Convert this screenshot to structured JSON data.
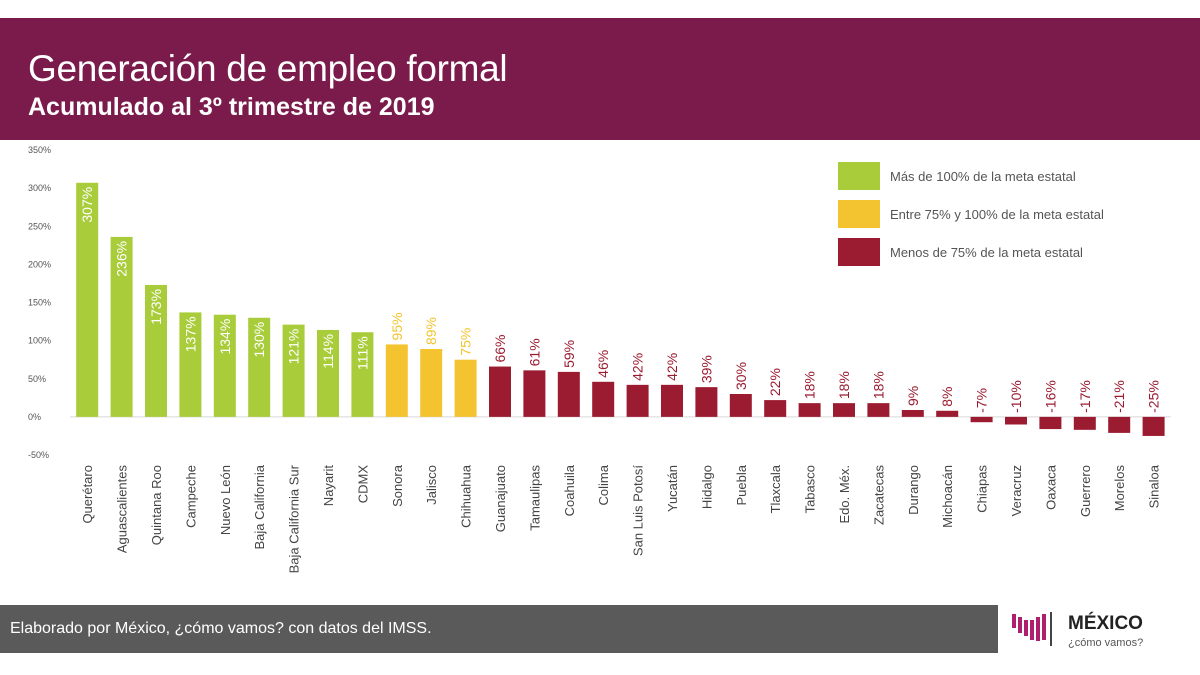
{
  "header": {
    "title": "Generación de empleo formal",
    "subtitle": "Acumulado al 3º trimestre de 2019"
  },
  "footer": {
    "source": "Elaborado por México, ¿cómo vamos? con datos del IMSS."
  },
  "logo": {
    "title": "MÉXICO",
    "subtitle": "¿cómo vamos?"
  },
  "colors": {
    "header": "#7a1b4b",
    "green": "#a9cc3a",
    "yellow": "#f4c430",
    "red": "#9b1b30",
    "footer": "#5a5a5a"
  },
  "chart_data": {
    "type": "bar",
    "ylim": [
      -50,
      350
    ],
    "yticks": [
      -50,
      0,
      50,
      100,
      150,
      200,
      250,
      300,
      350
    ],
    "ytick_labels": [
      "-50%",
      "0%",
      "50%",
      "100%",
      "150%",
      "200%",
      "250%",
      "300%",
      "350%"
    ],
    "categories": [
      "Querétaro",
      "Aguascalientes",
      "Quintana Roo",
      "Campeche",
      "Nuevo León",
      "Baja California",
      "Baja California Sur",
      "Nayarit",
      "CDMX",
      "Sonora",
      "Jalisco",
      "Chihuahua",
      "Guanajuato",
      "Tamaulipas",
      "Coahuila",
      "Colima",
      "San Luis Potosí",
      "Yucatán",
      "Hidalgo",
      "Puebla",
      "Tlaxcala",
      "Tabasco",
      "Edo. Méx.",
      "Zacatecas",
      "Durango",
      "Michoacán",
      "Chiapas",
      "Veracruz",
      "Oaxaca",
      "Guerrero",
      "Morelos",
      "Sinaloa"
    ],
    "values": [
      307,
      236,
      173,
      137,
      134,
      130,
      121,
      114,
      111,
      95,
      89,
      75,
      66,
      61,
      59,
      46,
      42,
      42,
      39,
      30,
      22,
      18,
      18,
      18,
      9,
      8,
      -7,
      -10,
      -16,
      -17,
      -21,
      -25
    ],
    "value_labels": [
      "307%",
      "236%",
      "173%",
      "137%",
      "134%",
      "130%",
      "121%",
      "114%",
      "111%",
      "95%",
      "89%",
      "75%",
      "66%",
      "61%",
      "59%",
      "46%",
      "42%",
      "42%",
      "39%",
      "30%",
      "22%",
      "18%",
      "18%",
      "18%",
      "9%",
      "8%",
      "-7%",
      "-10%",
      "-16%",
      "-17%",
      "-21%",
      "-25%"
    ],
    "groups": [
      "green",
      "green",
      "green",
      "green",
      "green",
      "green",
      "green",
      "green",
      "green",
      "yellow",
      "yellow",
      "yellow",
      "red",
      "red",
      "red",
      "red",
      "red",
      "red",
      "red",
      "red",
      "red",
      "red",
      "red",
      "red",
      "red",
      "red",
      "red",
      "red",
      "red",
      "red",
      "red",
      "red"
    ],
    "legend": [
      {
        "group": "green",
        "label": "Más de 100% de la meta estatal"
      },
      {
        "group": "yellow",
        "label": "Entre 75% y 100% de la meta estatal"
      },
      {
        "group": "red",
        "label": "Menos de 75% de la meta estatal"
      }
    ],
    "legend_position": "top-right"
  }
}
